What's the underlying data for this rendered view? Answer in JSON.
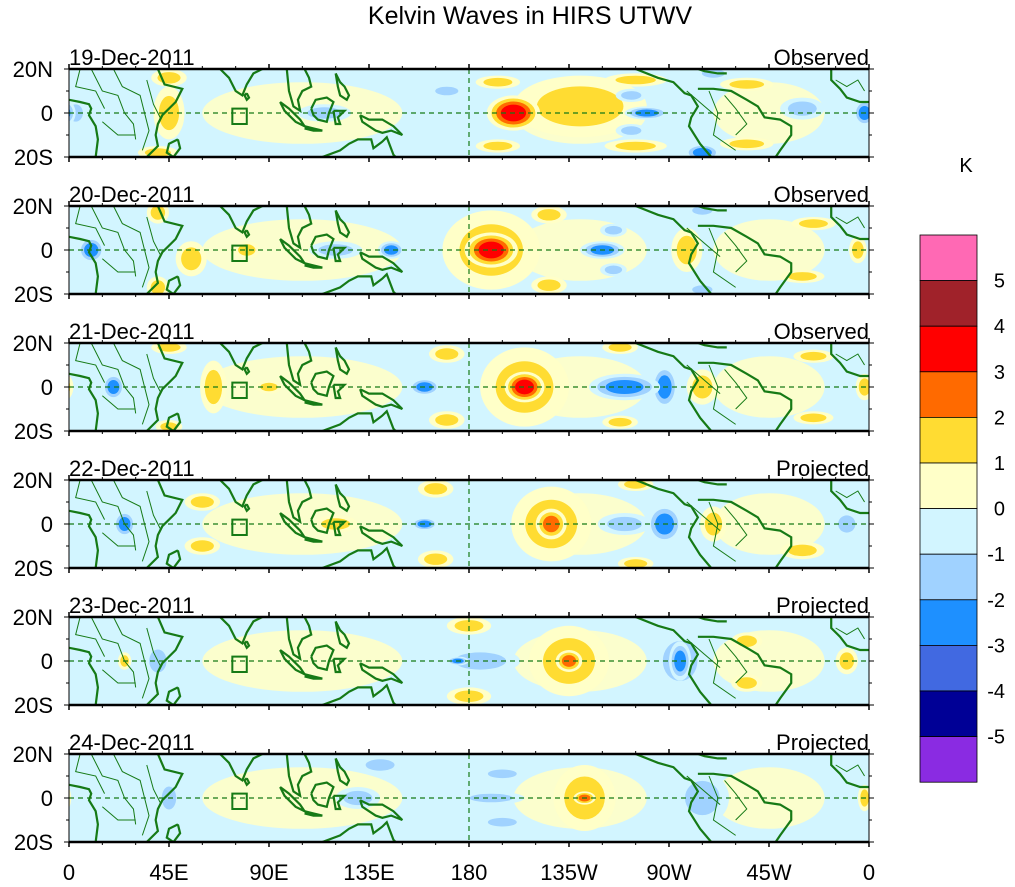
{
  "chart_data": {
    "type": "heatmap",
    "title": "Kelvin Waves in HIRS UTWV",
    "units_label": "K",
    "xlabel": "",
    "ylabel": "",
    "x_ticks": [
      "0",
      "45E",
      "90E",
      "135E",
      "180",
      "135W",
      "90W",
      "45W",
      "0"
    ],
    "x_range_deg_east": [
      0,
      360
    ],
    "y_ticks": [
      "20N",
      "0",
      "20S"
    ],
    "y_range_deg": [
      -20,
      20
    ],
    "equator_line": "dashed",
    "dateline_line": "dashed",
    "colorbar": {
      "levels": [
        "5",
        "4",
        "3",
        "2",
        "1",
        "0",
        "-1",
        "-2",
        "-3",
        "-4",
        "-5"
      ],
      "colors": [
        "#ff69b4",
        "#a0222a",
        "#ff0000",
        "#ff6a00",
        "#ffdc32",
        "#ffffc8",
        "#d2f5ff",
        "#a0d2ff",
        "#1e90ff",
        "#4169e1",
        "#000096",
        "#8a2be2"
      ]
    },
    "panels": [
      {
        "date": "19-Dec-2011",
        "label": "Observed",
        "blobs": [
          {
            "lon": 200,
            "lat": 0,
            "v": 3.5,
            "rx": 12,
            "ry": 8
          },
          {
            "lon": 193,
            "lat": 14,
            "v": 2,
            "rx": 10,
            "ry": 3
          },
          {
            "lon": 193,
            "lat": -15,
            "v": 2,
            "rx": 10,
            "ry": 3
          },
          {
            "lon": 230,
            "lat": 3,
            "v": 1.2,
            "rx": 30,
            "ry": 14
          },
          {
            "lon": 255,
            "lat": 15,
            "v": 2,
            "rx": 14,
            "ry": 3
          },
          {
            "lon": 255,
            "lat": -15,
            "v": 2,
            "rx": 14,
            "ry": 3
          },
          {
            "lon": 260,
            "lat": 0,
            "v": -2.5,
            "rx": 10,
            "ry": 3
          },
          {
            "lon": 253,
            "lat": 8,
            "v": -2,
            "rx": 7,
            "ry": 3
          },
          {
            "lon": 253,
            "lat": -8,
            "v": -2,
            "rx": 7,
            "ry": 3
          },
          {
            "lon": 305,
            "lat": 13,
            "v": 2,
            "rx": 12,
            "ry": 3
          },
          {
            "lon": 305,
            "lat": -14,
            "v": 2,
            "rx": 12,
            "ry": 3
          },
          {
            "lon": 330,
            "lat": 2,
            "v": -1.5,
            "rx": 10,
            "ry": 5
          },
          {
            "lon": 358,
            "lat": 0,
            "v": -2.5,
            "rx": 5,
            "ry": 6
          },
          {
            "lon": 3,
            "lat": 0,
            "v": -2,
            "rx": 5,
            "ry": 6
          },
          {
            "lon": 45,
            "lat": 0,
            "v": 1.3,
            "rx": 7,
            "ry": 12
          },
          {
            "lon": 45,
            "lat": 16,
            "v": 1.5,
            "rx": 8,
            "ry": 4
          },
          {
            "lon": 40,
            "lat": -18,
            "v": 1.8,
            "rx": 9,
            "ry": 3
          },
          {
            "lon": 75,
            "lat": 0,
            "v": 1,
            "rx": 4,
            "ry": 3
          },
          {
            "lon": 285,
            "lat": -18,
            "v": -2.3,
            "rx": 8,
            "ry": 4
          },
          {
            "lon": 290,
            "lat": 18,
            "v": -2,
            "rx": 8,
            "ry": 3
          },
          {
            "lon": 115,
            "lat": 0,
            "v": -1.2,
            "rx": 12,
            "ry": 4
          },
          {
            "lon": 170,
            "lat": 10,
            "v": -1.5,
            "rx": 8,
            "ry": 3
          }
        ]
      },
      {
        "date": "20-Dec-2011",
        "label": "Observed",
        "blobs": [
          {
            "lon": 190,
            "lat": 0,
            "v": 3.5,
            "rx": 12,
            "ry": 8
          },
          {
            "lon": 190,
            "lat": 0,
            "v": 1.2,
            "rx": 22,
            "ry": 18
          },
          {
            "lon": 240,
            "lat": 0,
            "v": -2.8,
            "rx": 10,
            "ry": 4
          },
          {
            "lon": 245,
            "lat": 9,
            "v": -2,
            "rx": 6,
            "ry": 3
          },
          {
            "lon": 245,
            "lat": -9,
            "v": -2,
            "rx": 6,
            "ry": 3
          },
          {
            "lon": 216,
            "lat": 16,
            "v": 2,
            "rx": 8,
            "ry": 4
          },
          {
            "lon": 216,
            "lat": -16,
            "v": 2,
            "rx": 8,
            "ry": 4
          },
          {
            "lon": 278,
            "lat": 0,
            "v": 1.3,
            "rx": 7,
            "ry": 10
          },
          {
            "lon": 335,
            "lat": 12,
            "v": 2,
            "rx": 10,
            "ry": 3
          },
          {
            "lon": 330,
            "lat": -12,
            "v": 2,
            "rx": 10,
            "ry": 3
          },
          {
            "lon": 10,
            "lat": 0,
            "v": -2.5,
            "rx": 6,
            "ry": 6
          },
          {
            "lon": 40,
            "lat": 17,
            "v": 2,
            "rx": 5,
            "ry": 5
          },
          {
            "lon": 40,
            "lat": -17,
            "v": 2,
            "rx": 5,
            "ry": 5
          },
          {
            "lon": 55,
            "lat": -4,
            "v": 1.2,
            "rx": 7,
            "ry": 8
          },
          {
            "lon": 80,
            "lat": 0,
            "v": 1.1,
            "rx": 6,
            "ry": 4
          },
          {
            "lon": 145,
            "lat": 0,
            "v": -2.5,
            "rx": 6,
            "ry": 4
          },
          {
            "lon": 120,
            "lat": 0,
            "v": -1.3,
            "rx": 12,
            "ry": 4
          },
          {
            "lon": 285,
            "lat": 18,
            "v": -2,
            "rx": 7,
            "ry": 3
          },
          {
            "lon": 285,
            "lat": -18,
            "v": -2,
            "rx": 7,
            "ry": 3
          },
          {
            "lon": 355,
            "lat": 0,
            "v": 1.2,
            "rx": 4,
            "ry": 6
          }
        ]
      },
      {
        "date": "21-Dec-2011",
        "label": "Observed",
        "blobs": [
          {
            "lon": 205,
            "lat": 0,
            "v": 3.2,
            "rx": 9,
            "ry": 7
          },
          {
            "lon": 205,
            "lat": 0,
            "v": 1.2,
            "rx": 20,
            "ry": 18
          },
          {
            "lon": 250,
            "lat": 0,
            "v": -2.5,
            "rx": 16,
            "ry": 6
          },
          {
            "lon": 268,
            "lat": 0,
            "v": -2.3,
            "rx": 6,
            "ry": 10
          },
          {
            "lon": 248,
            "lat": -16,
            "v": 2,
            "rx": 8,
            "ry": 3
          },
          {
            "lon": 248,
            "lat": 18,
            "v": 2,
            "rx": 8,
            "ry": 3
          },
          {
            "lon": 285,
            "lat": 0,
            "v": 1.4,
            "rx": 7,
            "ry": 8
          },
          {
            "lon": 335,
            "lat": 14,
            "v": 2,
            "rx": 9,
            "ry": 3
          },
          {
            "lon": 335,
            "lat": -14,
            "v": 2,
            "rx": 9,
            "ry": 3
          },
          {
            "lon": 20,
            "lat": 0,
            "v": -2.3,
            "rx": 5,
            "ry": 6
          },
          {
            "lon": 45,
            "lat": 18,
            "v": 2,
            "rx": 8,
            "ry": 3
          },
          {
            "lon": 45,
            "lat": -18,
            "v": 2,
            "rx": 6,
            "ry": 3
          },
          {
            "lon": 65,
            "lat": 0,
            "v": 1.2,
            "rx": 6,
            "ry": 12
          },
          {
            "lon": 160,
            "lat": 0,
            "v": -2.3,
            "rx": 7,
            "ry": 4
          },
          {
            "lon": 90,
            "lat": 0,
            "v": 1.1,
            "rx": 6,
            "ry": 3
          },
          {
            "lon": 170,
            "lat": 15,
            "v": 1.5,
            "rx": 8,
            "ry": 4
          },
          {
            "lon": 170,
            "lat": -15,
            "v": 1.5,
            "rx": 8,
            "ry": 4
          },
          {
            "lon": 358,
            "lat": 0,
            "v": 1.3,
            "rx": 4,
            "ry": 6
          }
        ]
      },
      {
        "date": "22-Dec-2011",
        "label": "Projected",
        "blobs": [
          {
            "lon": 217,
            "lat": 0,
            "v": 2.3,
            "rx": 7,
            "ry": 7
          },
          {
            "lon": 217,
            "lat": 0,
            "v": 1.2,
            "rx": 18,
            "ry": 17
          },
          {
            "lon": 268,
            "lat": 0,
            "v": -2.3,
            "rx": 8,
            "ry": 9
          },
          {
            "lon": 250,
            "lat": 0,
            "v": -1.3,
            "rx": 12,
            "ry": 5
          },
          {
            "lon": 290,
            "lat": 0,
            "v": 1.2,
            "rx": 6,
            "ry": 8
          },
          {
            "lon": 160,
            "lat": 0,
            "v": -2.3,
            "rx": 6,
            "ry": 3
          },
          {
            "lon": 165,
            "lat": 16,
            "v": 1.8,
            "rx": 8,
            "ry": 4
          },
          {
            "lon": 165,
            "lat": -16,
            "v": 1.8,
            "rx": 8,
            "ry": 4
          },
          {
            "lon": 25,
            "lat": 0,
            "v": -2.3,
            "rx": 5,
            "ry": 6
          },
          {
            "lon": 60,
            "lat": 10,
            "v": 1.2,
            "rx": 8,
            "ry": 4
          },
          {
            "lon": 60,
            "lat": -10,
            "v": 1.2,
            "rx": 8,
            "ry": 4
          },
          {
            "lon": 120,
            "lat": 0,
            "v": 1.1,
            "rx": 10,
            "ry": 4
          },
          {
            "lon": 330,
            "lat": -12,
            "v": 1.2,
            "rx": 10,
            "ry": 4
          },
          {
            "lon": 255,
            "lat": -18,
            "v": 2,
            "rx": 8,
            "ry": 3
          },
          {
            "lon": 255,
            "lat": 18,
            "v": 2,
            "rx": 8,
            "ry": 3
          },
          {
            "lon": 350,
            "lat": 0,
            "v": -1.3,
            "rx": 6,
            "ry": 6
          }
        ]
      },
      {
        "date": "23-Dec-2011",
        "label": "Projected",
        "blobs": [
          {
            "lon": 225,
            "lat": 0,
            "v": 2.3,
            "rx": 6,
            "ry": 5
          },
          {
            "lon": 225,
            "lat": 0,
            "v": 1.2,
            "rx": 18,
            "ry": 16
          },
          {
            "lon": 275,
            "lat": 0,
            "v": -2.3,
            "rx": 5,
            "ry": 9
          },
          {
            "lon": 275,
            "lat": 0,
            "v": -1.3,
            "rx": 12,
            "ry": 14
          },
          {
            "lon": 175,
            "lat": 0,
            "v": -2.3,
            "rx": 5,
            "ry": 2
          },
          {
            "lon": 185,
            "lat": 0,
            "v": -1.3,
            "rx": 18,
            "ry": 6
          },
          {
            "lon": 180,
            "lat": 16,
            "v": 1.2,
            "rx": 10,
            "ry": 4
          },
          {
            "lon": 180,
            "lat": -16,
            "v": 1.2,
            "rx": 10,
            "ry": 4
          },
          {
            "lon": 305,
            "lat": 9,
            "v": 1.2,
            "rx": 7,
            "ry": 4
          },
          {
            "lon": 305,
            "lat": -10,
            "v": 1.2,
            "rx": 7,
            "ry": 4
          },
          {
            "lon": 350,
            "lat": 0,
            "v": 1.2,
            "rx": 5,
            "ry": 6
          },
          {
            "lon": 25,
            "lat": 0,
            "v": 1.2,
            "rx": 3,
            "ry": 4
          },
          {
            "lon": 40,
            "lat": 0,
            "v": -1.3,
            "rx": 6,
            "ry": 8
          }
        ]
      },
      {
        "date": "24-Dec-2011",
        "label": "Projected",
        "blobs": [
          {
            "lon": 232,
            "lat": 0,
            "v": 2.3,
            "rx": 5,
            "ry": 3
          },
          {
            "lon": 232,
            "lat": 0,
            "v": 1.2,
            "rx": 14,
            "ry": 15
          },
          {
            "lon": 285,
            "lat": 0,
            "v": -1.3,
            "rx": 12,
            "ry": 12
          },
          {
            "lon": 190,
            "lat": 0,
            "v": -1.3,
            "rx": 15,
            "ry": 3
          },
          {
            "lon": 195,
            "lat": 11,
            "v": -1.3,
            "rx": 10,
            "ry": 3
          },
          {
            "lon": 195,
            "lat": -11,
            "v": -1.3,
            "rx": 10,
            "ry": 3
          },
          {
            "lon": 130,
            "lat": 0,
            "v": -1.3,
            "rx": 10,
            "ry": 5
          },
          {
            "lon": 140,
            "lat": 15,
            "v": -1.3,
            "rx": 10,
            "ry": 4
          },
          {
            "lon": 358,
            "lat": 0,
            "v": 1.2,
            "rx": 3,
            "ry": 6
          },
          {
            "lon": 45,
            "lat": 0,
            "v": -1.3,
            "rx": 5,
            "ry": 8
          }
        ]
      }
    ]
  }
}
